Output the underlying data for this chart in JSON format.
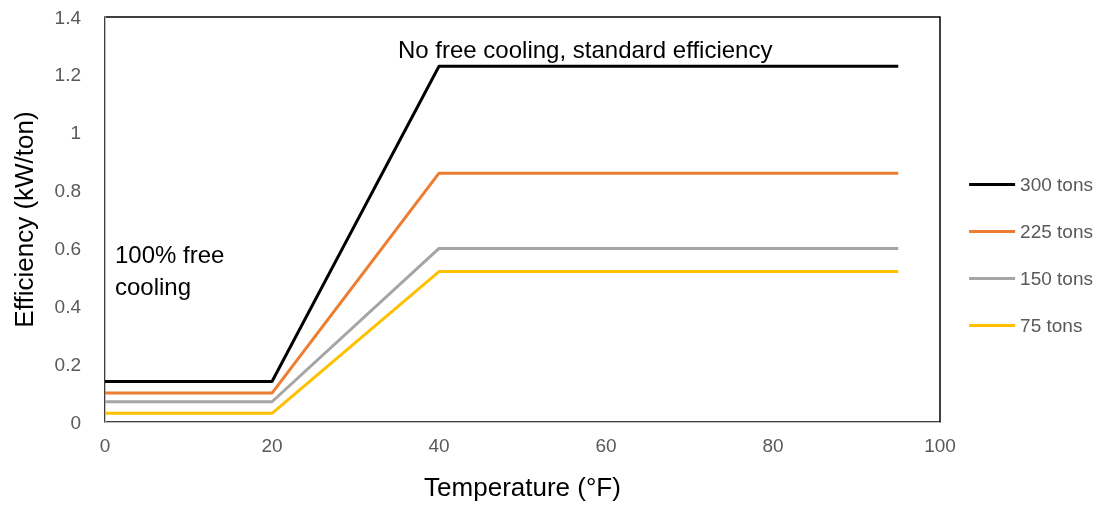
{
  "chart_data": {
    "type": "line",
    "xlabel": "Temperature (°F)",
    "ylabel": "Efficiency (kW/ton)",
    "x": [
      0,
      20,
      40,
      95
    ],
    "series": [
      {
        "name": "300 tons",
        "color": "#000000",
        "values": [
          0.14,
          0.14,
          1.23,
          1.23
        ]
      },
      {
        "name": "225 tons",
        "color": "#ed7d31",
        "values": [
          0.1,
          0.1,
          0.86,
          0.86
        ]
      },
      {
        "name": "150 tons",
        "color": "#a5a5a5",
        "values": [
          0.07,
          0.07,
          0.6,
          0.6
        ]
      },
      {
        "name": "75 tons",
        "color": "#ffc000",
        "values": [
          0.03,
          0.03,
          0.52,
          0.52
        ]
      }
    ],
    "xlim": [
      0,
      100
    ],
    "xticks": [
      0,
      20,
      40,
      60,
      80,
      100
    ],
    "ylim": [
      0,
      1.4
    ],
    "yticks": [
      0,
      0.2,
      0.4,
      0.6,
      0.8,
      1,
      1.2,
      1.4
    ],
    "annotations": [
      "No free cooling, standard efficiency",
      "100% free cooling"
    ],
    "grid": false,
    "legend": "right",
    "marker": "none",
    "line_style": "solid"
  }
}
